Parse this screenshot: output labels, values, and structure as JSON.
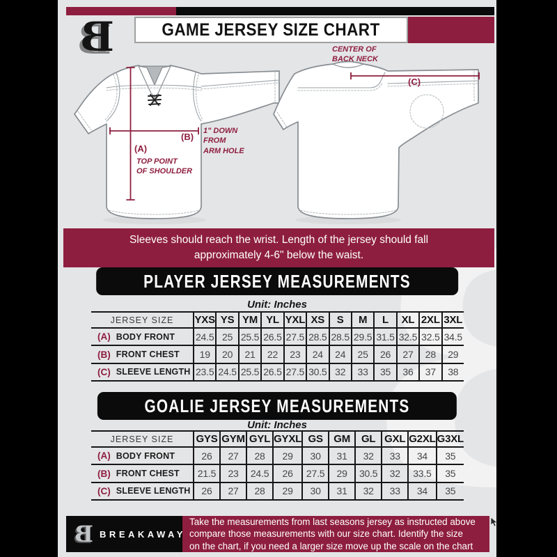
{
  "colors": {
    "maroon": "#8e1e3f",
    "black": "#0a0a0a",
    "background": "#e4e5e7"
  },
  "header": {
    "title": "GAME JERSEY SIZE CHART",
    "logo_letter": "B"
  },
  "diagram": {
    "center_back_neck": "CENTER OF\nBACK NECK",
    "key_a": "(A)",
    "key_b": "(B)",
    "key_c": "(C)",
    "top_point_of_shoulder": "TOP POINT\nOF SHOULDER",
    "down_from_armhole": "1\" DOWN\nFROM\nARM HOLE"
  },
  "banner": {
    "text": "Sleeves should reach the wrist. Length of the jersey should fall\napproximately 4-6\" below the waist."
  },
  "player": {
    "heading": "PLAYER JERSEY MEASUREMENTS",
    "unit": "Unit: Inches",
    "table": {
      "size_header": "JERSEY SIZE",
      "columns": [
        "YXS",
        "YS",
        "YM",
        "YL",
        "YXL",
        "XS",
        "S",
        "M",
        "L",
        "XL",
        "2XL",
        "3XL"
      ],
      "rows": [
        {
          "key": "(A)",
          "label": "BODY FRONT",
          "values": [
            "24.5",
            "25",
            "25.5",
            "26.5",
            "27.5",
            "28.5",
            "28.5",
            "29.5",
            "31.5",
            "32.5",
            "32.5",
            "34.5"
          ]
        },
        {
          "key": "(B)",
          "label": "FRONT CHEST",
          "values": [
            "19",
            "20",
            "21",
            "22",
            "23",
            "24",
            "24",
            "25",
            "26",
            "27",
            "28",
            "29"
          ]
        },
        {
          "key": "(C)",
          "label": "SLEEVE LENGTH",
          "values": [
            "23.5",
            "24.5",
            "25.5",
            "26.5",
            "27.5",
            "30.5",
            "32",
            "33",
            "35",
            "36",
            "37",
            "38"
          ]
        }
      ]
    }
  },
  "goalie": {
    "heading": "GOALIE JERSEY MEASUREMENTS",
    "unit": "Unit: Inches",
    "table": {
      "size_header": "JERSEY SIZE",
      "columns": [
        "GYS",
        "GYM",
        "GYL",
        "GYXL",
        "GS",
        "GM",
        "GL",
        "GXL",
        "G2XL",
        "G3XL"
      ],
      "rows": [
        {
          "key": "(A)",
          "label": "BODY FRONT",
          "values": [
            "26",
            "27",
            "28",
            "29",
            "30",
            "31",
            "32",
            "33",
            "34",
            "35"
          ]
        },
        {
          "key": "(B)",
          "label": "FRONT CHEST",
          "values": [
            "21.5",
            "23",
            "24.5",
            "26",
            "27.5",
            "29",
            "30.5",
            "32",
            "33.5",
            "35"
          ]
        },
        {
          "key": "(C)",
          "label": "SLEEVE LENGTH",
          "values": [
            "26",
            "27",
            "28",
            "29",
            "30",
            "31",
            "32",
            "33",
            "34",
            "35"
          ]
        }
      ]
    }
  },
  "footer": {
    "brand": "BREAKAWAY",
    "logo_letter": "B",
    "note": "Take the measurements from last seasons jersey as instructed above\ncompare those measurements  with our size chart. Identify the size\non the chart, if you need a larger size move up the scale on the chart"
  }
}
